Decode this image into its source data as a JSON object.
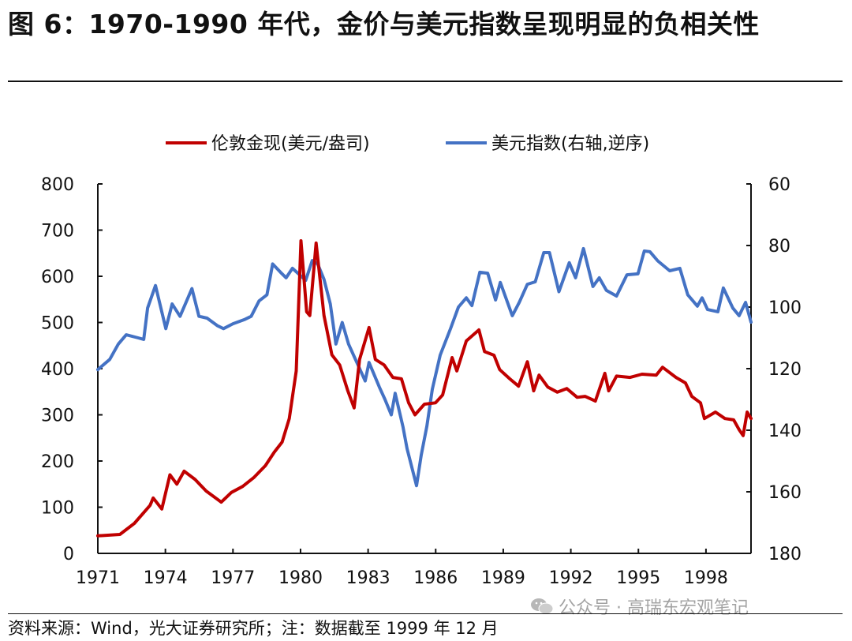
{
  "title": "图 6：1970-1990 年代，金价与美元指数呈现明显的负相关性",
  "source": "资料来源：Wind，光大证券研究所；注：数据截至 1999 年 12 月",
  "watermark": "公众号 · 高瑞东宏观笔记",
  "chart_data": {
    "type": "line",
    "title": "",
    "legend_position": "top",
    "grid": false,
    "x_ticks": [
      "1971",
      "1974",
      "1977",
      "1980",
      "1983",
      "1986",
      "1989",
      "1992",
      "1995",
      "1998"
    ],
    "xlim": [
      1971,
      2000
    ],
    "left_axis": {
      "ylim": [
        0,
        800
      ],
      "ticks": [
        "0",
        "100",
        "200",
        "300",
        "400",
        "500",
        "600",
        "700",
        "800"
      ]
    },
    "right_axis": {
      "ylim": [
        60,
        180
      ],
      "reversed": true,
      "ticks": [
        "60",
        "80",
        "100",
        "120",
        "140",
        "160",
        "180"
      ]
    },
    "series": [
      {
        "name": "伦敦金现(美元/盎司)",
        "axis": "left",
        "color": "#C00000",
        "x": [
          1971.0,
          1971.98,
          1972.62,
          1973.32,
          1973.46,
          1973.84,
          1974.2,
          1974.51,
          1974.83,
          1975.32,
          1975.81,
          1976.48,
          1976.93,
          1977.43,
          1977.92,
          1978.44,
          1978.83,
          1979.18,
          1979.5,
          1979.81,
          1980.02,
          1980.27,
          1980.41,
          1980.69,
          1981.04,
          1981.39,
          1981.74,
          1982.1,
          1982.38,
          1982.62,
          1983.04,
          1983.32,
          1983.71,
          1984.1,
          1984.48,
          1984.8,
          1985.08,
          1985.5,
          1985.99,
          1986.31,
          1986.73,
          1986.94,
          1987.36,
          1987.92,
          1988.17,
          1988.59,
          1988.84,
          1989.29,
          1989.68,
          1990.07,
          1990.35,
          1990.59,
          1990.98,
          1991.4,
          1991.82,
          1992.28,
          1992.63,
          1993.09,
          1993.51,
          1993.68,
          1994.03,
          1994.63,
          1995.16,
          1995.79,
          1996.07,
          1996.67,
          1997.09,
          1997.37,
          1997.76,
          1997.93,
          1998.42,
          1998.84,
          1999.23,
          1999.48,
          1999.65,
          1999.83,
          2000.0
        ],
        "y": [
          38,
          41,
          65,
          104,
          120,
          96,
          170,
          150,
          178,
          160,
          135,
          111,
          132,
          145,
          164,
          190,
          219,
          241,
          292,
          395,
          677,
          523,
          515,
          672,
          515,
          430,
          408,
          352,
          315,
          420,
          489,
          420,
          408,
          381,
          378,
          326,
          300,
          323,
          326,
          343,
          424,
          395,
          460,
          484,
          437,
          429,
          398,
          378,
          362,
          415,
          352,
          386,
          360,
          349,
          357,
          338,
          340,
          330,
          390,
          352,
          384,
          381,
          388,
          386,
          403,
          381,
          369,
          340,
          326,
          292,
          306,
          292,
          289,
          267,
          255,
          306,
          292
        ]
      },
      {
        "name": "美元指数(右轴,逆序)",
        "axis": "right",
        "color": "#4472C4",
        "x": [
          1971.0,
          1971.53,
          1971.91,
          1972.26,
          1972.79,
          1973.04,
          1973.21,
          1973.56,
          1974.02,
          1974.3,
          1974.65,
          1975.18,
          1975.49,
          1975.85,
          1976.3,
          1976.58,
          1977.0,
          1977.53,
          1977.81,
          1978.16,
          1978.51,
          1978.76,
          1979.11,
          1979.36,
          1979.64,
          1980.23,
          1980.52,
          1980.76,
          1981.04,
          1981.32,
          1981.57,
          1981.85,
          1982.13,
          1982.87,
          1983.04,
          1983.5,
          1983.75,
          1984.03,
          1984.2,
          1984.55,
          1984.73,
          1985.15,
          1985.36,
          1985.61,
          1985.85,
          1986.2,
          1986.66,
          1987.01,
          1987.36,
          1987.61,
          1987.96,
          1988.31,
          1988.66,
          1988.87,
          1989.4,
          1989.71,
          1990.07,
          1990.42,
          1990.8,
          1991.05,
          1991.47,
          1991.93,
          1992.21,
          1992.56,
          1992.98,
          1993.26,
          1993.58,
          1994.03,
          1994.49,
          1994.98,
          1995.26,
          1995.51,
          1995.86,
          1996.39,
          1996.84,
          1997.19,
          1997.62,
          1997.83,
          1998.07,
          1998.53,
          1998.77,
          1999.19,
          1999.47,
          1999.76,
          2000.0
        ],
        "y": [
          120.3,
          117,
          112,
          109,
          110,
          110.5,
          100.3,
          93,
          107,
          99,
          103,
          94,
          103,
          103.6,
          106,
          107,
          105.4,
          104,
          103,
          98,
          96,
          86,
          88.7,
          90.5,
          87.4,
          91.3,
          84.9,
          86,
          91,
          99,
          112,
          105,
          112,
          124,
          118,
          126,
          130,
          135,
          128,
          139,
          146,
          158,
          148,
          138.7,
          126.7,
          115.6,
          107,
          100,
          97,
          99.5,
          88.7,
          89,
          97.7,
          92,
          102.8,
          98.5,
          92.6,
          91.8,
          82.3,
          82.3,
          95,
          85.6,
          90.5,
          81,
          93.3,
          90.5,
          94.6,
          96.4,
          89.5,
          89.2,
          81.8,
          82,
          85,
          88.2,
          87.4,
          96,
          99.7,
          97,
          100.8,
          101.5,
          93.8,
          100.3,
          102.8,
          98.5,
          104.9
        ]
      }
    ]
  }
}
